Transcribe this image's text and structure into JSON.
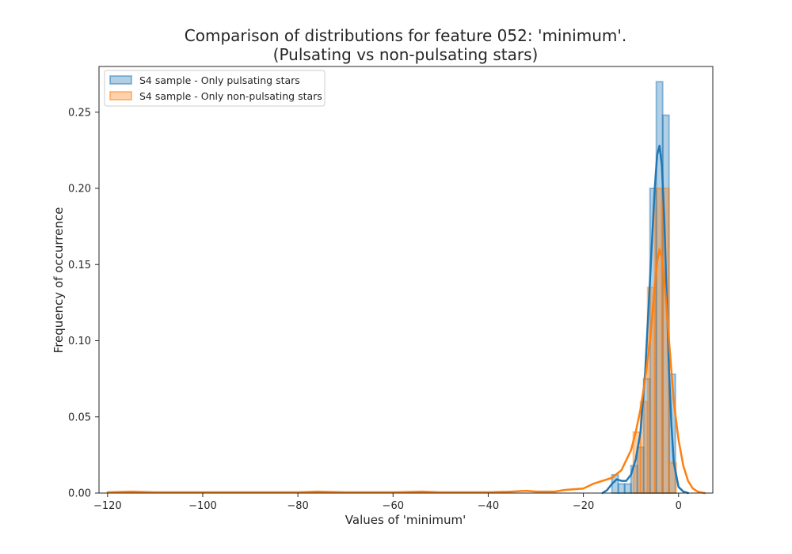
{
  "chart_data": {
    "type": "histogram",
    "title_line1": "Comparison of distributions for feature 052: 'minimum'.",
    "title_line2": "(Pulsating vs non-pulsating stars)",
    "xlabel": "Values of 'minimum'",
    "ylabel": "Frequency of occurrence",
    "xlim": [
      -121.8,
      7.2
    ],
    "ylim": [
      0,
      0.28
    ],
    "x_ticks": [
      -120,
      -100,
      -80,
      -60,
      -40,
      -20,
      0
    ],
    "x_tick_labels": [
      "−120",
      "−100",
      "−80",
      "−60",
      "−40",
      "−20",
      "0"
    ],
    "y_ticks": [
      0,
      0.05,
      0.1,
      0.15,
      0.2,
      0.25
    ],
    "y_tick_labels": [
      "0.00",
      "0.05",
      "0.10",
      "0.15",
      "0.20",
      "0.25"
    ],
    "grid": false,
    "legend_placement": "top-left",
    "series": [
      {
        "name": "S4 sample - Only pulsating stars",
        "color": "#1f77b4",
        "bin_edges": [
          -14,
          -12.667,
          -11.333,
          -10,
          -8.667,
          -7.333,
          -6,
          -4.667,
          -3.333,
          -2,
          -0.667
        ],
        "values": [
          0.012,
          0.006,
          0.006,
          0.018,
          0.03,
          0.075,
          0.2,
          0.27,
          0.248,
          0.078
        ],
        "kde_x": [
          -16,
          -15,
          -14,
          -13,
          -12,
          -11,
          -10,
          -9,
          -8,
          -7,
          -6,
          -5,
          -4.5,
          -4,
          -3.5,
          -3,
          -2.5,
          -2,
          -1.5,
          -1,
          0,
          1,
          2
        ],
        "kde_y": [
          0,
          0.002,
          0.006,
          0.009,
          0.008,
          0.008,
          0.012,
          0.022,
          0.04,
          0.08,
          0.14,
          0.2,
          0.222,
          0.228,
          0.215,
          0.18,
          0.13,
          0.08,
          0.045,
          0.02,
          0.004,
          0.001,
          0
        ]
      },
      {
        "name": "S4 sample - Only non-pulsating stars",
        "color": "#ff7f0e",
        "bin_edges": [
          -9.5,
          -8,
          -6.5,
          -5,
          -3.5,
          -2,
          -0.5
        ],
        "values": [
          0.04,
          0.06,
          0.135,
          0.2,
          0.2,
          0.02
        ],
        "kde_x": [
          -120,
          -115,
          -110,
          -100,
          -90,
          -80,
          -76,
          -70,
          -60,
          -54,
          -50,
          -45,
          -40,
          -35,
          -32,
          -30,
          -26,
          -24,
          -20,
          -18,
          -16,
          -14,
          -12,
          -10,
          -9,
          -8,
          -7,
          -6,
          -5,
          -4.5,
          -4,
          -3.5,
          -3,
          -2.5,
          -2,
          -1.5,
          -1,
          0,
          1,
          2,
          3,
          4,
          5,
          5.5
        ],
        "kde_y": [
          0.0005,
          0.001,
          0.0005,
          0.0005,
          0.0005,
          0.0005,
          0.001,
          0.0005,
          0.0005,
          0.001,
          0.0005,
          0.0005,
          0.0005,
          0.001,
          0.0015,
          0.001,
          0.001,
          0.002,
          0.003,
          0.006,
          0.008,
          0.01,
          0.015,
          0.028,
          0.04,
          0.055,
          0.075,
          0.1,
          0.135,
          0.152,
          0.16,
          0.155,
          0.14,
          0.12,
          0.1,
          0.08,
          0.06,
          0.035,
          0.018,
          0.008,
          0.003,
          0.001,
          0.0003,
          0
        ]
      }
    ]
  }
}
